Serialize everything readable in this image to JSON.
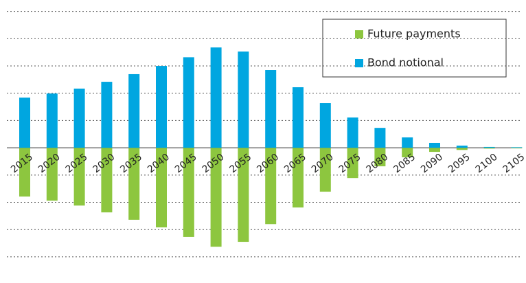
{
  "chart_data": {
    "type": "bar",
    "categories": [
      "2015",
      "2020",
      "2025",
      "2030",
      "2035",
      "2040",
      "2045",
      "2050",
      "2055",
      "2060",
      "2065",
      "2070",
      "2075",
      "2080",
      "2085",
      "2090",
      "2095",
      "2100",
      "2105"
    ],
    "series": [
      {
        "name": "Future payments",
        "color": "#8dc63f",
        "values": [
          -1.79,
          -1.94,
          -2.12,
          -2.37,
          -2.64,
          -2.92,
          -3.27,
          -3.63,
          -3.45,
          -2.8,
          -2.19,
          -1.61,
          -1.11,
          -0.68,
          -0.35,
          -0.15,
          -0.08,
          -0.03,
          -0.02
        ]
      },
      {
        "name": "Bond notional",
        "color": "#00a6e0",
        "values": [
          1.84,
          1.99,
          2.17,
          2.42,
          2.7,
          3.0,
          3.32,
          3.68,
          3.53,
          2.85,
          2.22,
          1.64,
          1.11,
          0.73,
          0.38,
          0.18,
          0.08,
          0.03,
          0.02
        ]
      }
    ],
    "ylim": [
      -4.96,
      5.42
    ],
    "yticks": [
      -4,
      -3,
      -2,
      -1,
      0,
      1,
      2,
      3,
      4,
      5
    ],
    "grid": true,
    "legend": "upper right"
  }
}
